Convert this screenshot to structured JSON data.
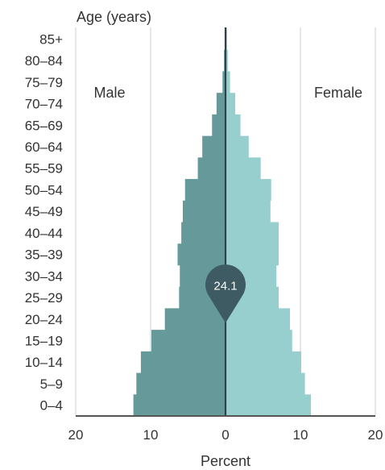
{
  "chart_data": {
    "type": "bar",
    "orientation": "horizontal",
    "subtype": "population-pyramid",
    "ylabel": "Age (years)",
    "xlabel": "Percent",
    "xlim": [
      -20,
      20
    ],
    "x_ticks": [
      -20,
      -10,
      0,
      10,
      20
    ],
    "x_tick_labels": [
      "20",
      "10",
      "0",
      "10",
      "20"
    ],
    "grid": true,
    "categories": [
      "0–4",
      "5–9",
      "10–14",
      "15–19",
      "20–24",
      "25–29",
      "30–34",
      "35–39",
      "40–44",
      "45–49",
      "50–54",
      "55–59",
      "60–64",
      "65–69",
      "70–74",
      "75–79",
      "80–84",
      "85+"
    ],
    "series": [
      {
        "name": "Male",
        "color": "#65999a",
        "values": [
          12.3,
          11.9,
          11.3,
          9.9,
          8.1,
          6.2,
          6.1,
          6.4,
          5.9,
          5.7,
          5.4,
          3.7,
          3.1,
          1.8,
          1.2,
          0.4,
          0.2,
          0.1
        ]
      },
      {
        "name": "Female",
        "color": "#97cfcf",
        "values": [
          11.4,
          10.6,
          10.1,
          8.9,
          8.6,
          7.1,
          6.8,
          7.1,
          7.1,
          6.0,
          6.1,
          4.7,
          3.1,
          2.0,
          1.3,
          0.6,
          0.3,
          0.2
        ]
      }
    ],
    "annotation": {
      "label": "24.1",
      "age_group": "25–29",
      "color": "#3e5a62"
    }
  }
}
